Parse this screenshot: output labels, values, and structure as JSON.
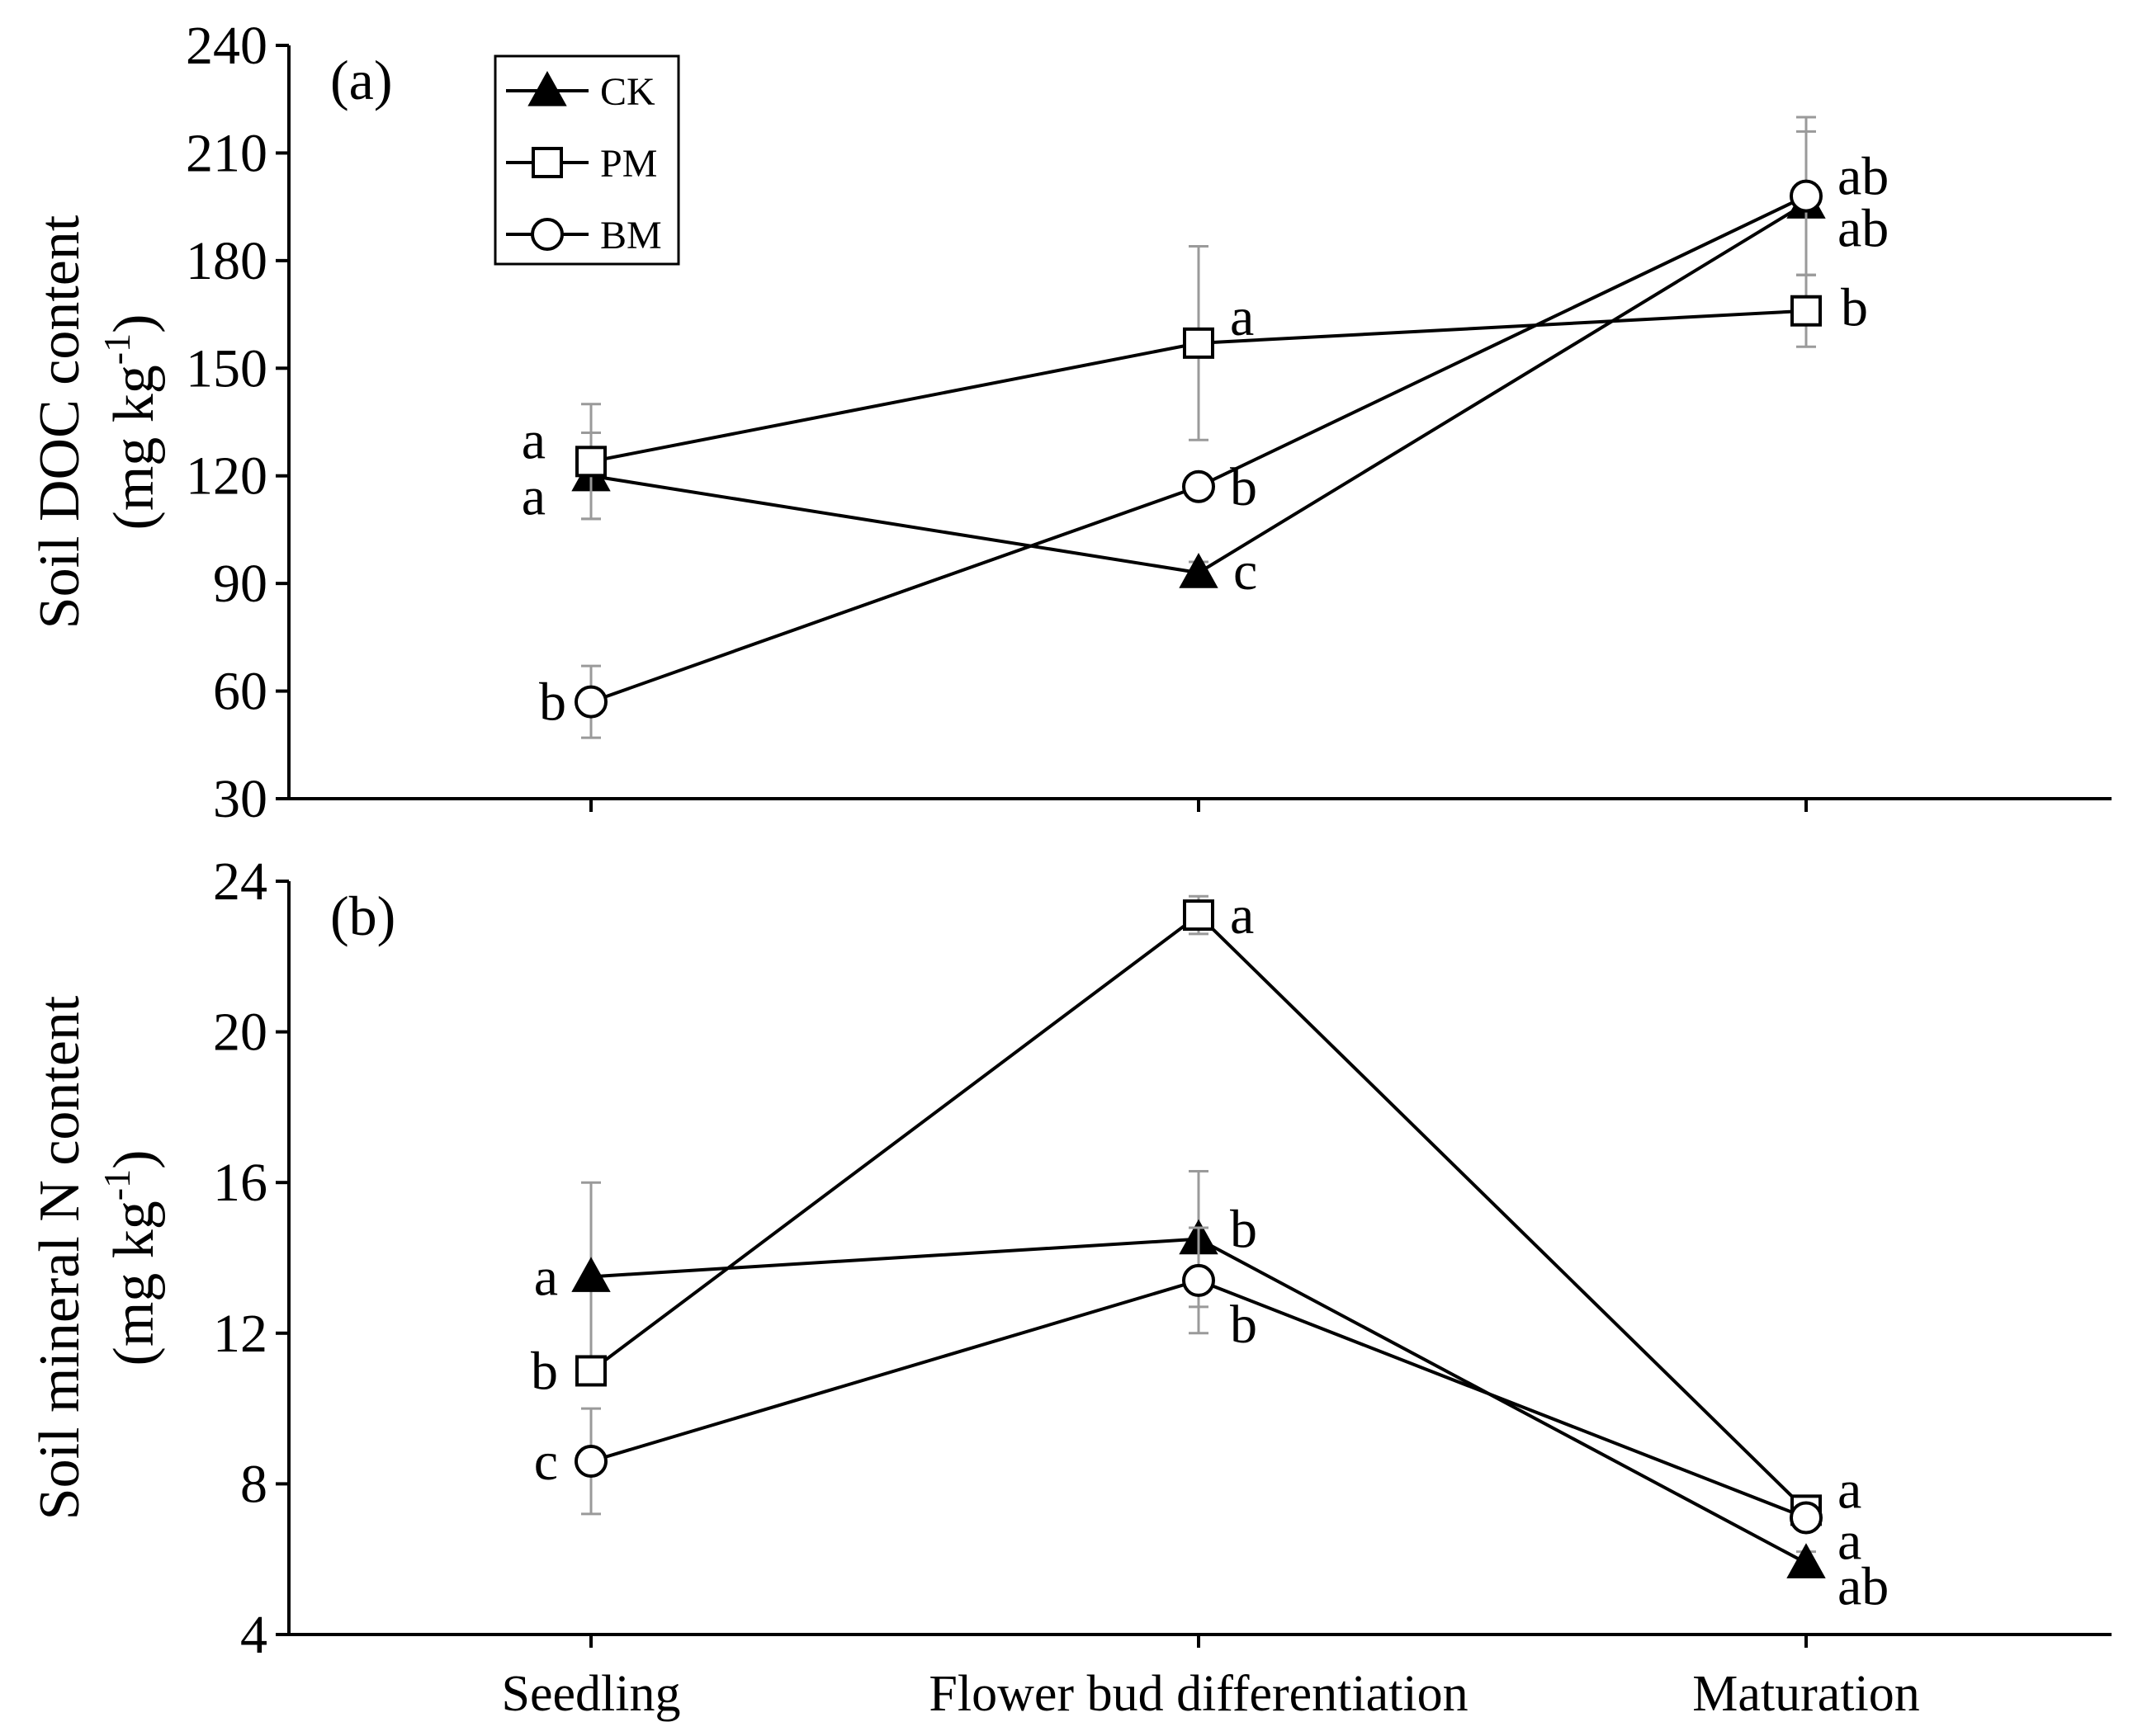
{
  "chart_data": [
    {
      "type": "line",
      "panel_label": "(a)",
      "ylabel": "Soil DOC content",
      "ylabel_unit": "(mg kg-1)",
      "ylabel_unit_parts": {
        "open": "(mg kg",
        "sup": "-1",
        "close": ")"
      },
      "ylim": [
        30,
        240
      ],
      "yticks": [
        "30",
        "60",
        "90",
        "120",
        "150",
        "180",
        "210",
        "240"
      ],
      "categories": [
        "Seedling",
        "Flower bud differentiation",
        "Maturation"
      ],
      "series": [
        {
          "name": "CK",
          "marker": "filled-triangle",
          "values": [
            120,
            93,
            196
          ],
          "errors": [
            12,
            3,
            20
          ],
          "labels": [
            "a",
            "c",
            "ab"
          ]
        },
        {
          "name": "PM",
          "marker": "open-square",
          "values": [
            124,
            157,
            166
          ],
          "errors": [
            16,
            27,
            10
          ],
          "labels": [
            "a",
            "a",
            "b"
          ]
        },
        {
          "name": "BM",
          "marker": "open-circle",
          "values": [
            57,
            117,
            198
          ],
          "errors": [
            10,
            3,
            22
          ],
          "labels": [
            "b",
            "b",
            "ab"
          ]
        }
      ]
    },
    {
      "type": "line",
      "panel_label": "(b)",
      "ylabel": "Soil mineral N content",
      "ylabel_unit": "(mg kg-1)",
      "ylabel_unit_parts": {
        "open": "(mg kg",
        "sup": "-1",
        "close": ")"
      },
      "ylim": [
        4,
        24
      ],
      "yticks": [
        "4",
        "8",
        "12",
        "16",
        "20",
        "24"
      ],
      "categories": [
        "Seedling",
        "Flower bud differentiation",
        "Maturation"
      ],
      "series": [
        {
          "name": "CK",
          "marker": "filled-triangle",
          "values": [
            13.5,
            14.5,
            5.9
          ],
          "errors": [
            2.5,
            1.8,
            0.3
          ],
          "labels": [
            "a",
            "b",
            "ab"
          ]
        },
        {
          "name": "PM",
          "marker": "open-square",
          "values": [
            11.0,
            23.1,
            7.3
          ],
          "errors": [
            0.3,
            0.5,
            0.2
          ],
          "labels": [
            "b",
            "a",
            "a"
          ]
        },
        {
          "name": "BM",
          "marker": "open-circle",
          "values": [
            8.6,
            13.4,
            7.1
          ],
          "errors": [
            1.4,
            1.4,
            0.2
          ],
          "labels": [
            "c",
            "b",
            "a"
          ]
        }
      ]
    }
  ],
  "legend": [
    {
      "name": "CK",
      "marker": "filled-triangle"
    },
    {
      "name": "PM",
      "marker": "open-square"
    },
    {
      "name": "BM",
      "marker": "open-circle"
    }
  ]
}
